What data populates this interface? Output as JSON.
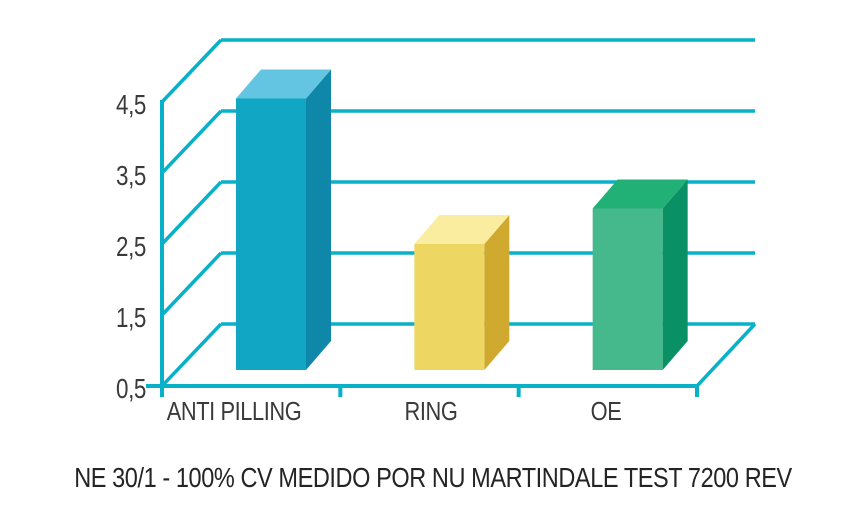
{
  "page": {
    "background": "#ffffff"
  },
  "chart_data": {
    "type": "bar",
    "style": "3d-perspective-bars",
    "categories": [
      "ANTI PILLING",
      "RING",
      "OE"
    ],
    "values": [
      4.55,
      2.5,
      3.0
    ],
    "series": [
      {
        "name": "ANTI PILLING",
        "value": 4.55
      },
      {
        "name": "RING",
        "value": 2.5
      },
      {
        "name": "OE",
        "value": 3.0
      }
    ],
    "bar_colors": [
      {
        "front": "#12a6c5",
        "top": "#63c5e1",
        "side": "#0f87a9"
      },
      {
        "front": "#edd762",
        "top": "#fbeda0",
        "side": "#cfaa2f"
      },
      {
        "front": "#45b98b",
        "top": "#21b075",
        "side": "#0a9065"
      }
    ],
    "y_axis": {
      "tick_labels": [
        "4,5",
        "3,5",
        "2,5",
        "1,5",
        "0,5"
      ],
      "tick_values": [
        4.5,
        3.5,
        2.5,
        1.5,
        0.5
      ],
      "min": 0.5,
      "max": 4.5,
      "step": 1.0
    },
    "x_axis": {
      "labels": [
        "ANTI PILLING",
        "RING",
        "OE"
      ]
    },
    "grid": "horizontal-back-wall",
    "grid_color": "#08b1c8",
    "axis_color": "#08b1c8",
    "label_color": "#3a3a3a",
    "legend": "none",
    "background": "#ffffff",
    "caption": "NE 30/1 - 100% CV MEDIDO POR NU MARTINDALE TEST 7200 REV",
    "caption_color": "#242424"
  }
}
